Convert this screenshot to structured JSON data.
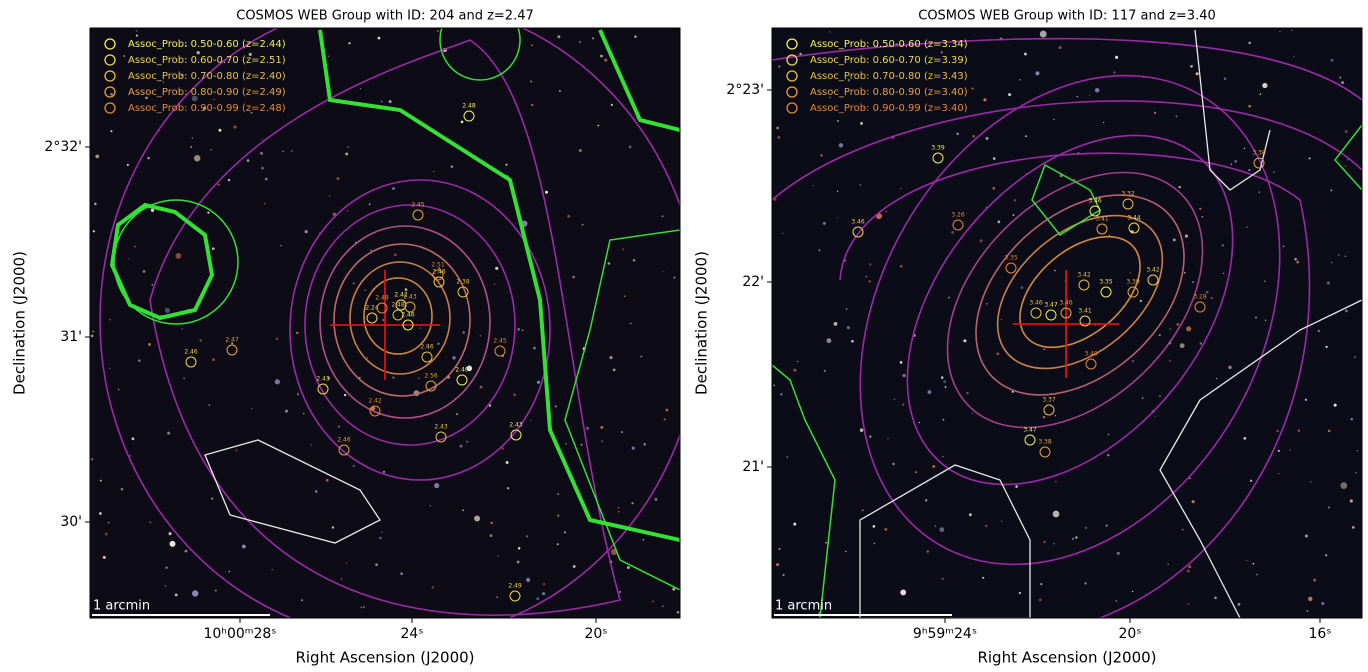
{
  "panels": [
    {
      "title": "COSMOS WEB Group with ID: 204 and z=2.47",
      "legend": [
        "Assoc_Prob: 0.50-0.60 (z=2.44)",
        "Assoc_Prob: 0.60-0.70 (z=2.51)",
        "Assoc_Prob: 0.70-0.80 (z=2.40)",
        "Assoc_Prob: 0.80-0.90 (z=2.49)",
        "Assoc_Prob: 0.90-0.99 (z=2.48)"
      ],
      "yticks": [
        "2°32'",
        "31'",
        "30'"
      ],
      "xticks": [
        "10ʰ00ᵐ28ˢ",
        "24ˢ",
        "20ˢ"
      ],
      "xlabel": "Right Ascension (J2000)",
      "ylabel": "Declination (J2000)",
      "scale": "1 arcmin",
      "members": [
        "2.48",
        "2.45",
        "2.46",
        "2.51",
        "2.38",
        "2.42",
        "2.43",
        "2.24",
        "2.48",
        "2.48",
        "2.46",
        "2.47",
        "2.46",
        "2.45",
        "2.46",
        "2.40",
        "2.56",
        "2.43",
        "2.42",
        "2.43",
        "2.43",
        "2.46",
        "2.49"
      ]
    },
    {
      "title": "COSMOS WEB Group with ID: 117 and z=3.40",
      "legend": [
        "Assoc_Prob: 0.50-0.60 (z=3.34)",
        "Assoc_Prob: 0.60-0.70 (z=3.39)",
        "Assoc_Prob: 0.70-0.80 (z=3.43)",
        "Assoc_Prob: 0.80-0.90 (z=3.40)",
        "Assoc_Prob: 0.90-0.99 (z=3.40)"
      ],
      "yticks": [
        "2°23'",
        "22'",
        "21'"
      ],
      "xticks": [
        "9ʰ59ᵐ24ˢ",
        "20ˢ",
        "16ˢ"
      ],
      "xlabel": "Right Ascension (J2000)",
      "ylabel": "Declination (J2000)",
      "scale": "1 arcmin",
      "members": [
        "3.39",
        "3.38",
        "3.46",
        "3.26",
        "3.32",
        "3.46",
        "3.41",
        "3.44",
        "3.35",
        "3.42",
        "3.35",
        "3.39",
        "3.42",
        "3.28",
        "3.46",
        "3.47",
        "3.46",
        "3.41",
        "3.40",
        "3.37",
        "3.47",
        "3.38"
      ]
    }
  ]
}
